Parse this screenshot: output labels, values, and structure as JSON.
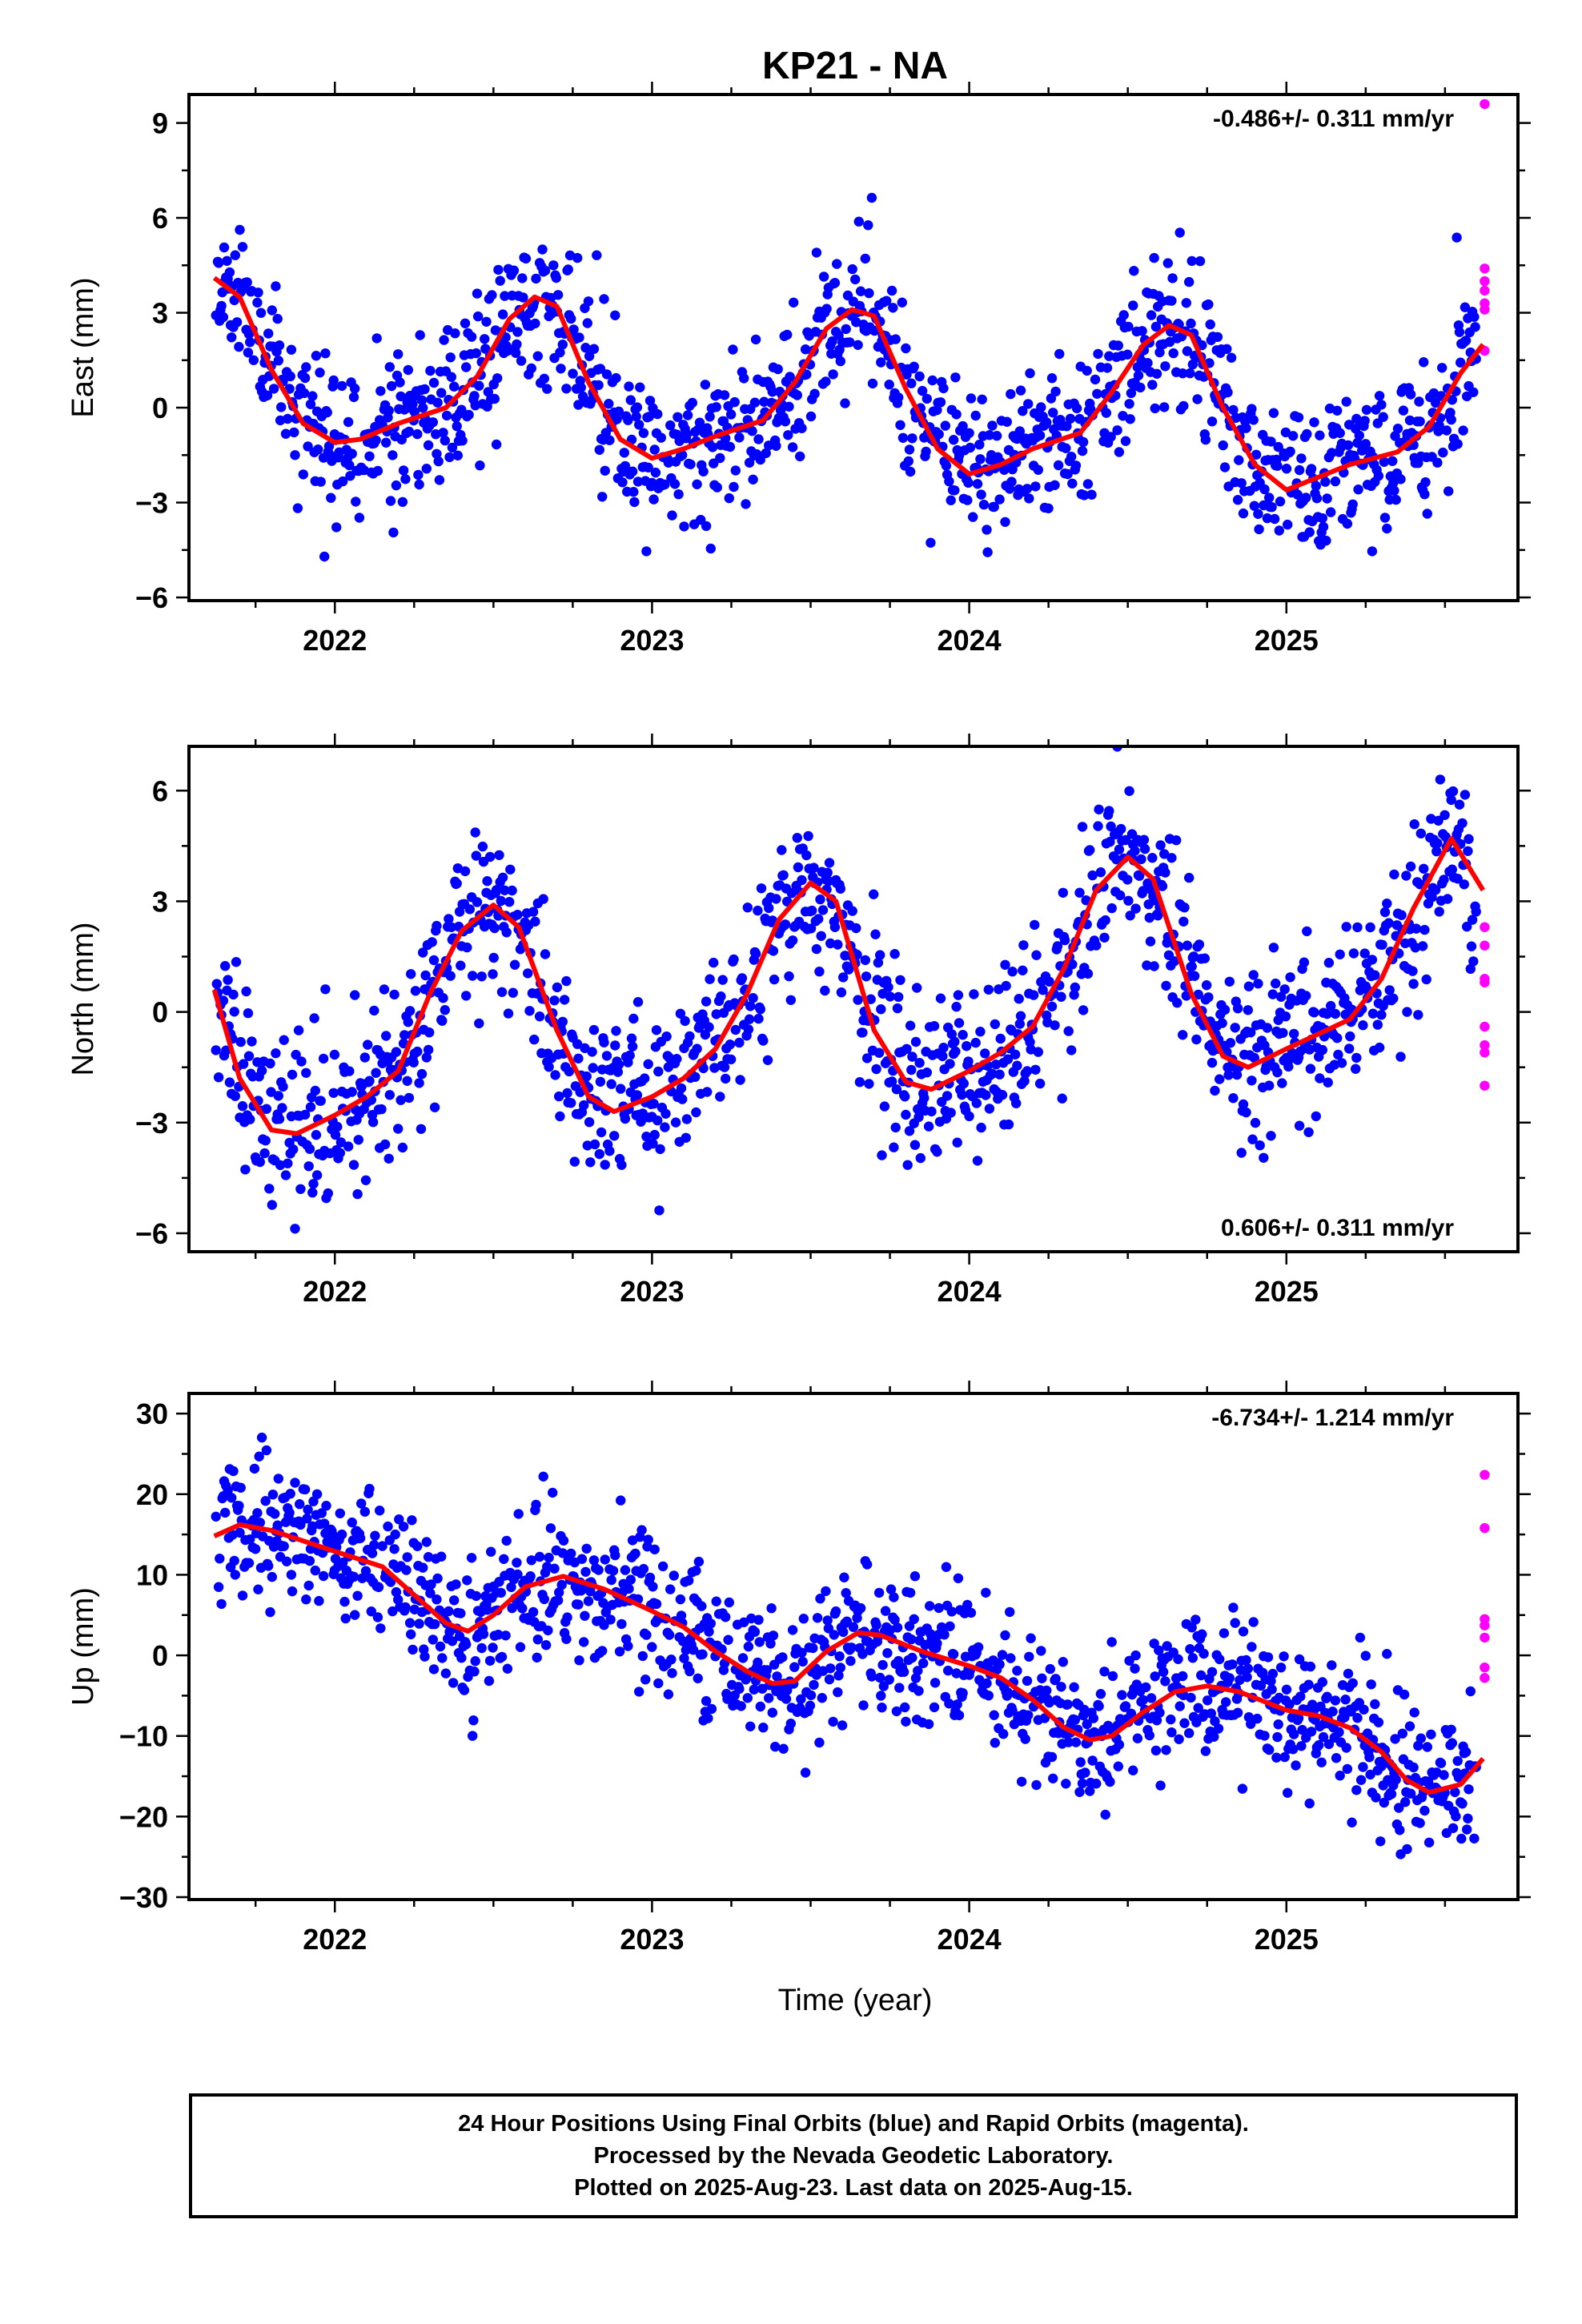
{
  "title": "KP21 - NA",
  "x_axis_title": "Time (year)",
  "colors": {
    "final": "#0000ff",
    "rapid": "#ff00ff",
    "model": "#ff0000",
    "frame": "#000000"
  },
  "footer": {
    "line1": "24 Hour Positions Using Final Orbits (blue) and Rapid Orbits (magenta).",
    "line2": "Processed by the Nevada Geodetic Laboratory.",
    "line3": "Plotted on 2025-Aug-23. Last data on 2025-Aug-15."
  },
  "chart_data": [
    {
      "type": "scatter",
      "ylabel": "East (mm)",
      "rate": "-0.486+/- 0.311 mm/yr",
      "rate_position": "top-right",
      "xlim": [
        2021.54,
        2025.73
      ],
      "ylim": [
        -6.1,
        9.9
      ],
      "xticks": [
        2022,
        2023,
        2024,
        2025
      ],
      "yticks": [
        -6,
        -3,
        0,
        3,
        6,
        9
      ],
      "model_curve": {
        "x": [
          2021.62,
          2021.7,
          2021.8,
          2021.9,
          2022.0,
          2022.08,
          2022.2,
          2022.35,
          2022.45,
          2022.55,
          2022.63,
          2022.7,
          2022.8,
          2022.9,
          2023.0,
          2023.1,
          2023.2,
          2023.35,
          2023.45,
          2023.55,
          2023.63,
          2023.7,
          2023.8,
          2023.9,
          2024.0,
          2024.1,
          2024.2,
          2024.35,
          2024.45,
          2024.55,
          2024.63,
          2024.7,
          2024.8,
          2024.9,
          2025.0,
          2025.1,
          2025.2,
          2025.35,
          2025.45,
          2025.55,
          2025.62
        ],
        "y": [
          4.1,
          3.5,
          1.2,
          -0.5,
          -1.1,
          -1.0,
          -0.5,
          0.0,
          1.0,
          2.8,
          3.5,
          3.2,
          0.8,
          -1.0,
          -1.6,
          -1.3,
          -0.9,
          -0.4,
          0.8,
          2.5,
          3.1,
          2.9,
          0.6,
          -1.3,
          -2.1,
          -1.8,
          -1.3,
          -0.8,
          0.5,
          2.0,
          2.6,
          2.3,
          0.0,
          -1.8,
          -2.6,
          -2.2,
          -1.8,
          -1.4,
          -0.6,
          1.1,
          2.0
        ]
      },
      "final": {
        "noise": 1.2,
        "seed": 11
      },
      "rapid": {
        "x": [
          2025.625,
          2025.625,
          2025.625,
          2025.625,
          2025.625,
          2025.625,
          2025.625
        ],
        "y": [
          9.6,
          4.4,
          4.0,
          3.7,
          3.3,
          3.1,
          1.8
        ]
      }
    },
    {
      "type": "scatter",
      "ylabel": "North (mm)",
      "rate": "0.606+/- 0.311 mm/yr",
      "rate_position": "bottom-right",
      "xlim": [
        2021.54,
        2025.73
      ],
      "ylim": [
        -6.5,
        7.2
      ],
      "xticks": [
        2022,
        2023,
        2024,
        2025
      ],
      "yticks": [
        -6,
        -3,
        0,
        3,
        6
      ],
      "model_curve": {
        "x": [
          2021.62,
          2021.7,
          2021.8,
          2021.88,
          2022.0,
          2022.1,
          2022.2,
          2022.3,
          2022.4,
          2022.5,
          2022.58,
          2022.7,
          2022.8,
          2022.88,
          2023.0,
          2023.1,
          2023.2,
          2023.3,
          2023.4,
          2023.5,
          2023.58,
          2023.7,
          2023.8,
          2023.88,
          2024.0,
          2024.1,
          2024.2,
          2024.3,
          2024.4,
          2024.5,
          2024.58,
          2024.7,
          2024.8,
          2024.88,
          2025.0,
          2025.1,
          2025.2,
          2025.3,
          2025.4,
          2025.52,
          2025.62
        ],
        "y": [
          0.6,
          -1.8,
          -3.2,
          -3.3,
          -2.8,
          -2.3,
          -1.6,
          0.5,
          2.2,
          2.9,
          2.3,
          -0.5,
          -2.3,
          -2.7,
          -2.3,
          -1.8,
          -1.0,
          0.5,
          2.5,
          3.5,
          3.0,
          -0.5,
          -1.9,
          -2.1,
          -1.6,
          -1.1,
          -0.4,
          1.2,
          3.3,
          4.2,
          3.6,
          0.5,
          -1.2,
          -1.5,
          -1.0,
          -0.6,
          -0.2,
          0.9,
          2.8,
          4.7,
          3.3
        ]
      },
      "final": {
        "noise": 1.15,
        "seed": 23
      },
      "rapid": {
        "x": [
          2025.625,
          2025.625,
          2025.625,
          2025.625,
          2025.625,
          2025.625,
          2025.625,
          2025.625
        ],
        "y": [
          2.3,
          1.8,
          0.9,
          0.8,
          -0.4,
          -0.9,
          -1.1,
          -2.0
        ]
      }
    },
    {
      "type": "scatter",
      "ylabel": "Up (mm)",
      "rate": "-6.734+/- 1.214 mm/yr",
      "rate_position": "top-right",
      "xlim": [
        2021.54,
        2025.73
      ],
      "ylim": [
        -30.3,
        32.5
      ],
      "xticks": [
        2022,
        2023,
        2024,
        2025
      ],
      "yticks": [
        -30,
        -20,
        -10,
        0,
        10,
        20,
        30
      ],
      "model_curve": {
        "x": [
          2021.62,
          2021.7,
          2021.8,
          2022.0,
          2022.15,
          2022.25,
          2022.35,
          2022.42,
          2022.5,
          2022.6,
          2022.72,
          2022.85,
          2023.0,
          2023.1,
          2023.2,
          2023.3,
          2023.38,
          2023.45,
          2023.55,
          2023.65,
          2023.72,
          2023.85,
          2024.0,
          2024.1,
          2024.2,
          2024.3,
          2024.38,
          2024.45,
          2024.55,
          2024.65,
          2024.75,
          2024.85,
          2025.0,
          2025.1,
          2025.2,
          2025.3,
          2025.38,
          2025.45,
          2025.55,
          2025.62
        ],
        "y": [
          14.8,
          16.2,
          15.5,
          12.9,
          11.0,
          7.5,
          4.0,
          3.0,
          5.0,
          8.5,
          9.8,
          8.2,
          5.5,
          3.5,
          0.5,
          -2.0,
          -3.5,
          -3.2,
          0.5,
          2.8,
          2.5,
          0.5,
          -1.3,
          -2.8,
          -5.5,
          -9.0,
          -10.5,
          -10.0,
          -7.0,
          -4.5,
          -3.8,
          -4.5,
          -6.8,
          -7.5,
          -9.0,
          -12.0,
          -15.5,
          -17.0,
          -16.0,
          -12.8
        ]
      },
      "final": {
        "noise": 4.3,
        "seed": 37
      },
      "rapid": {
        "x": [
          2025.625,
          2025.625,
          2025.625,
          2025.625,
          2025.625,
          2025.625,
          2025.625
        ],
        "y": [
          22.4,
          15.8,
          4.5,
          3.7,
          2.2,
          -1.5,
          -2.8
        ]
      }
    }
  ]
}
